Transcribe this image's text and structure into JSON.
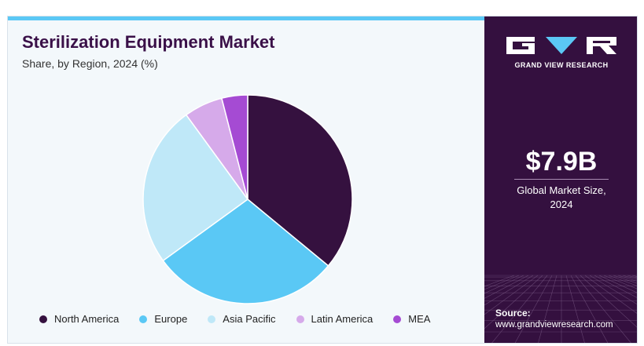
{
  "header": {
    "title": "Sterilization Equipment Market",
    "subtitle": "Share, by Region, 2024 (%)"
  },
  "sidebar": {
    "brand": "GRAND VIEW RESEARCH",
    "market_size": "$7.9B",
    "market_caption_line1": "Global Market Size,",
    "market_caption_line2": "2024",
    "source_label": "Source:",
    "source_url": "www.grandviewresearch.com"
  },
  "colors": {
    "background": "#f3f8fb",
    "sidebar": "#34103f",
    "accent_bar": "#5bc8f5"
  },
  "chart_data": {
    "type": "pie",
    "title": "Sterilization Equipment Market",
    "subtitle": "Share, by Region, 2024 (%)",
    "categories": [
      "North America",
      "Europe",
      "Asia Pacific",
      "Latin America",
      "MEA"
    ],
    "values": [
      36,
      29,
      25,
      6,
      4
    ],
    "colors": [
      "#35113f",
      "#5ac8f5",
      "#bfe8f8",
      "#d6aaea",
      "#a54bd3"
    ],
    "legend_position": "bottom"
  }
}
